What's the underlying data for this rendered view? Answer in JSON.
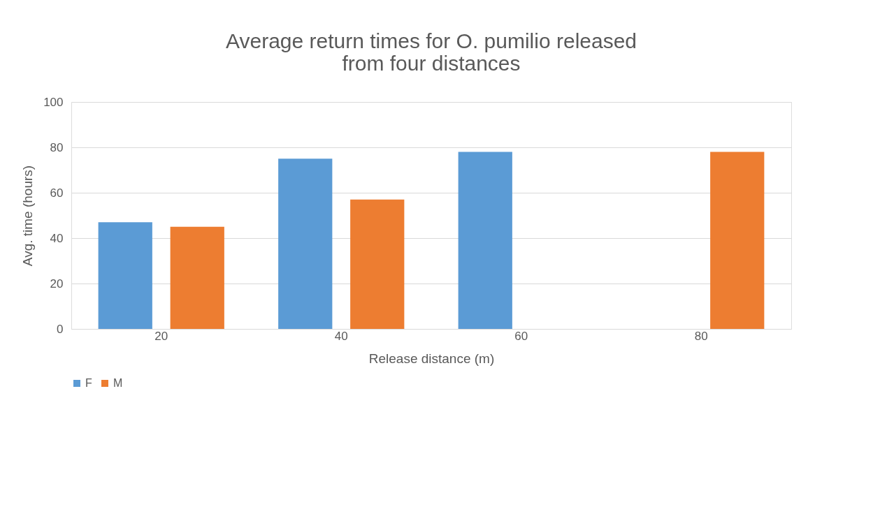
{
  "chart_data": {
    "type": "bar",
    "title": "Average return times for O. pumilio released from four distances",
    "xlabel": "Release distance (m)",
    "ylabel": "Avg. time (hours)",
    "categories": [
      "20",
      "40",
      "60",
      "80"
    ],
    "series": [
      {
        "name": "F",
        "color": "#5b9bd5",
        "values": [
          47,
          75,
          78,
          null
        ]
      },
      {
        "name": "M",
        "color": "#ed7d31",
        "values": [
          45,
          57,
          null,
          78
        ]
      }
    ],
    "ylim": [
      0,
      100
    ],
    "yticks": [
      0,
      20,
      40,
      60,
      80,
      100
    ],
    "grid": "y",
    "legend": "bottom"
  }
}
